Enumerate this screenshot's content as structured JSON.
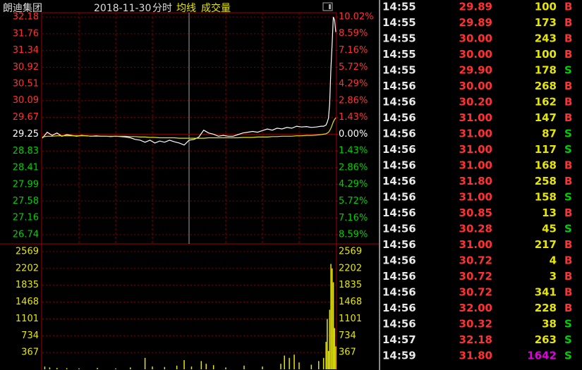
{
  "header": {
    "name": "朗迪集团",
    "date": "2018-11-30",
    "mode": "分时"
  },
  "chart_data": [
    {
      "type": "line",
      "xlim": [
        0,
        240
      ],
      "ylim": [
        26.74,
        32.18
      ],
      "yticks": [
        32.18,
        31.76,
        31.34,
        30.92,
        30.51,
        30.09,
        29.67,
        29.25,
        28.83,
        28.41,
        27.99,
        27.58,
        27.16,
        26.74
      ],
      "y2lim": [
        -8.59,
        10.02
      ],
      "y2ticks": [
        {
          "value": 10.02,
          "label": "10.02%"
        },
        {
          "value": 8.59,
          "label": "8.59%"
        },
        {
          "value": 7.16,
          "label": "7.16%"
        },
        {
          "value": 5.72,
          "label": "5.72%"
        },
        {
          "value": 4.29,
          "label": "4.29%"
        },
        {
          "value": 2.86,
          "label": "2.86%"
        },
        {
          "value": 1.43,
          "label": "1.43%"
        },
        {
          "value": 0,
          "label": "0.00%"
        },
        {
          "value": -1.43,
          "label": "1.43%"
        },
        {
          "value": -2.86,
          "label": "2.86%"
        },
        {
          "value": -4.29,
          "label": "4.29%"
        },
        {
          "value": -5.72,
          "label": "5.72%"
        },
        {
          "value": -7.16,
          "label": "7.16%"
        },
        {
          "value": -8.59,
          "label": "8.59%"
        }
      ],
      "x": [
        0,
        4,
        8,
        12,
        16,
        20,
        24,
        28,
        32,
        36,
        40,
        44,
        48,
        52,
        56,
        60,
        64,
        68,
        72,
        76,
        80,
        84,
        88,
        92,
        96,
        100,
        104,
        108,
        112,
        116,
        120,
        124,
        128,
        132,
        136,
        140,
        144,
        148,
        152,
        156,
        160,
        164,
        168,
        172,
        176,
        180,
        184,
        188,
        192,
        196,
        200,
        204,
        208,
        212,
        216,
        220,
        224,
        228,
        230,
        232,
        233,
        234,
        235,
        236,
        237,
        238,
        239,
        240
      ],
      "series": [
        {
          "color": "#ffffff",
          "values": [
            29.15,
            29.3,
            29.22,
            29.28,
            29.2,
            29.24,
            29.22,
            29.2,
            29.22,
            29.21,
            29.2,
            29.21,
            29.2,
            29.2,
            29.19,
            29.2,
            29.19,
            29.18,
            29.16,
            29.12,
            29.1,
            29.05,
            29.1,
            29.03,
            29.08,
            29.05,
            29.1,
            29.06,
            29.03,
            28.98,
            29.1,
            29.12,
            29.18,
            29.35,
            29.28,
            29.25,
            29.2,
            29.22,
            29.2,
            29.2,
            29.24,
            29.28,
            29.3,
            29.32,
            29.3,
            29.34,
            29.38,
            29.35,
            29.4,
            29.38,
            29.42,
            29.4,
            29.45,
            29.43,
            29.44,
            29.42,
            29.43,
            29.45,
            29.45,
            29.48,
            29.55,
            29.65,
            30.0,
            30.9,
            31.5,
            32.18,
            32.1,
            31.8
          ]
        },
        {
          "name": "均线",
          "color": "#e6e600",
          "values": [
            29.18,
            29.2,
            29.2,
            29.21,
            29.21,
            29.21,
            29.21,
            29.21,
            29.21,
            29.21,
            29.2,
            29.2,
            29.2,
            29.2,
            29.2,
            29.2,
            29.2,
            29.2,
            29.19,
            29.19,
            29.18,
            29.18,
            29.17,
            29.17,
            29.16,
            29.16,
            29.16,
            29.16,
            29.15,
            29.15,
            29.15,
            29.15,
            29.15,
            29.15,
            29.16,
            29.16,
            29.16,
            29.16,
            29.16,
            29.16,
            29.16,
            29.17,
            29.17,
            29.17,
            29.18,
            29.18,
            29.18,
            29.19,
            29.19,
            29.2,
            29.2,
            29.2,
            29.21,
            29.21,
            29.22,
            29.22,
            29.23,
            29.24,
            29.25,
            29.26,
            29.28,
            29.3,
            29.34,
            29.4,
            29.48,
            29.56,
            29.62,
            29.66
          ]
        }
      ]
    },
    {
      "type": "bar",
      "title": "成交量",
      "color": "#e6e600",
      "xlim": [
        0,
        240
      ],
      "ylim": [
        0,
        2569
      ],
      "yticks": [
        2569,
        2202,
        1835,
        1468,
        1101,
        734,
        367
      ],
      "x": [
        2,
        6,
        12,
        20,
        30,
        45,
        60,
        72,
        84,
        90,
        100,
        110,
        116,
        122,
        130,
        134,
        140,
        150,
        165,
        180,
        195,
        198,
        202,
        206,
        210,
        220,
        226,
        230,
        232,
        233,
        234,
        235,
        236,
        237,
        238,
        239,
        240
      ],
      "values": [
        60,
        40,
        30,
        25,
        20,
        30,
        20,
        40,
        250,
        60,
        50,
        80,
        200,
        60,
        180,
        120,
        90,
        40,
        80,
        60,
        120,
        300,
        250,
        320,
        150,
        100,
        180,
        250,
        600,
        1100,
        400,
        1300,
        2300,
        2200,
        1900,
        900,
        500
      ]
    }
  ],
  "trades": {
    "up_color": "#ff3232",
    "buy_color": "#ff3232",
    "sell_color": "#00d000",
    "volume_color": "#e6e600",
    "rows": [
      {
        "time": "14:55",
        "price": "29.89",
        "volume": 100,
        "side": "B"
      },
      {
        "time": "14:55",
        "price": "29.89",
        "volume": 173,
        "side": "B"
      },
      {
        "time": "14:55",
        "price": "30.00",
        "volume": 243,
        "side": "B"
      },
      {
        "time": "14:55",
        "price": "30.00",
        "volume": 100,
        "side": "B"
      },
      {
        "time": "14:55",
        "price": "29.90",
        "volume": 178,
        "side": "S"
      },
      {
        "time": "14:56",
        "price": "30.00",
        "volume": 268,
        "side": "B"
      },
      {
        "time": "14:56",
        "price": "30.20",
        "volume": 162,
        "side": "B"
      },
      {
        "time": "14:56",
        "price": "31.00",
        "volume": 147,
        "side": "B"
      },
      {
        "time": "14:56",
        "price": "31.00",
        "volume": 87,
        "side": "S"
      },
      {
        "time": "14:56",
        "price": "31.00",
        "volume": 117,
        "side": "S"
      },
      {
        "time": "14:56",
        "price": "31.00",
        "volume": 168,
        "side": "B"
      },
      {
        "time": "14:56",
        "price": "31.80",
        "volume": 258,
        "side": "B"
      },
      {
        "time": "14:56",
        "price": "31.00",
        "volume": 158,
        "side": "S"
      },
      {
        "time": "14:56",
        "price": "30.85",
        "volume": 13,
        "side": "B"
      },
      {
        "time": "14:56",
        "price": "30.28",
        "volume": 45,
        "side": "S"
      },
      {
        "time": "14:56",
        "price": "31.00",
        "volume": 217,
        "side": "B"
      },
      {
        "time": "14:56",
        "price": "30.72",
        "volume": 4,
        "side": "B"
      },
      {
        "time": "14:56",
        "price": "30.72",
        "volume": 3,
        "side": "B"
      },
      {
        "time": "14:56",
        "price": "30.72",
        "volume": 341,
        "side": "B"
      },
      {
        "time": "14:56",
        "price": "32.00",
        "volume": 228,
        "side": "B"
      },
      {
        "time": "14:56",
        "price": "30.32",
        "volume": 38,
        "side": "S"
      },
      {
        "time": "14:57",
        "price": "32.18",
        "volume": 263,
        "side": "S"
      },
      {
        "time": "14:59",
        "price": "31.80",
        "volume": 1642,
        "side": "S",
        "volume_color": "#e000e0"
      }
    ]
  }
}
